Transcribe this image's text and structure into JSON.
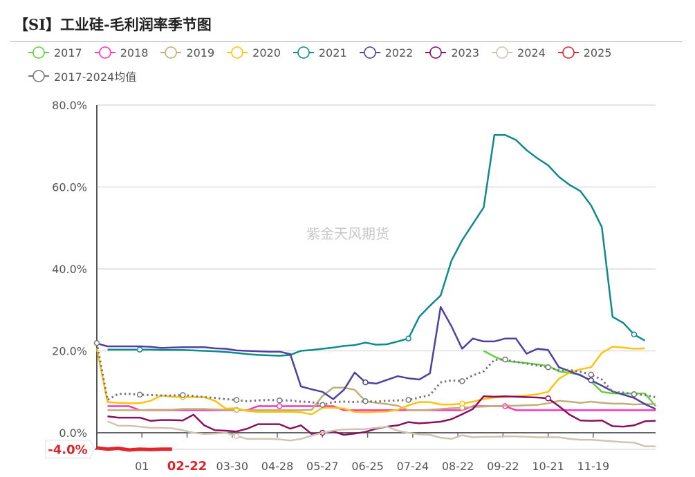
{
  "title": "【SI】工业硅-毛利润率季节图",
  "watermark": "紫金天风期货",
  "chart_data": {
    "type": "line",
    "title": "【SI】工业硅-毛利润率季节图",
    "ylim": [
      -4,
      80
    ],
    "y_ticks": [
      "80.0%",
      "60.0%",
      "40.0%",
      "20.0%",
      "0.0%"
    ],
    "y_tick_values": [
      80,
      60,
      40,
      20,
      0
    ],
    "x_count": 53,
    "x_ticks": [
      {
        "label": "01",
        "at": 4.2
      },
      {
        "label": "02-22",
        "at": 8.4
      },
      {
        "label": "03-30",
        "at": 12.6
      },
      {
        "label": "04-28",
        "at": 16.8
      },
      {
        "label": "05-27",
        "at": 21.0
      },
      {
        "label": "06-25",
        "at": 25.2
      },
      {
        "label": "07-24",
        "at": 29.4
      },
      {
        "label": "08-22",
        "at": 33.6
      },
      {
        "label": "09-22",
        "at": 37.8
      },
      {
        "label": "10-21",
        "at": 42.0
      },
      {
        "label": "11-19",
        "at": 46.2
      }
    ],
    "axis_pointer": {
      "x_label": "02-22",
      "y_label": "-4.0%",
      "color": "#d9252b"
    },
    "grid": true,
    "legend_position": "top-left",
    "series": [
      {
        "name": "2017",
        "color": "#5ed13c",
        "values": [
          null,
          null,
          null,
          null,
          null,
          null,
          null,
          null,
          null,
          null,
          null,
          null,
          null,
          null,
          null,
          null,
          null,
          null,
          null,
          null,
          null,
          null,
          null,
          null,
          null,
          null,
          null,
          null,
          null,
          null,
          null,
          null,
          null,
          null,
          null,
          null,
          20.0,
          18.6,
          17.5,
          17.3,
          17.0,
          16.7,
          16.3,
          15.0,
          14.6,
          14.2,
          12.5,
          10.0,
          9.6,
          9.6,
          9.6,
          9.6,
          6.5
        ]
      },
      {
        "name": "2018",
        "color": "#ff33bb",
        "values": [
          null,
          6.5,
          6.5,
          6.5,
          5.5,
          5.5,
          5.5,
          5.5,
          5.5,
          5.5,
          5.5,
          5.5,
          5.5,
          5.5,
          5.5,
          6.5,
          6.5,
          6.5,
          6.5,
          6.5,
          6.5,
          6.5,
          6.5,
          5.5,
          5.5,
          5.5,
          5.5,
          5.5,
          5.5,
          5.5,
          5.5,
          5.5,
          5.5,
          5.5,
          5.5,
          6.5,
          6.5,
          6.5,
          6.5,
          5.5,
          5.5,
          5.5,
          5.5,
          5.5,
          5.5,
          5.5,
          5.5,
          5.5,
          5.5,
          5.5,
          5.5,
          5.5,
          5.5
        ]
      },
      {
        "name": "2019",
        "color": "#bfae78",
        "values": [
          null,
          5.5,
          5.5,
          5.5,
          5.5,
          5.6,
          5.6,
          5.6,
          5.8,
          5.8,
          5.8,
          5.7,
          5.6,
          5.6,
          5.5,
          5.5,
          5.5,
          5.5,
          5.5,
          5.5,
          5.6,
          9.0,
          11.0,
          11.0,
          10.5,
          7.7,
          7.3,
          7.0,
          6.6,
          5.5,
          5.5,
          5.6,
          5.8,
          6.0,
          6.1,
          6.3,
          6.4,
          6.5,
          6.6,
          6.6,
          6.7,
          6.8,
          7.2,
          7.8,
          7.6,
          7.3,
          7.6,
          7.3,
          7.1,
          7.1,
          6.9,
          7.0,
          7.0
        ]
      },
      {
        "name": "2020",
        "color": "#ffc20e",
        "values": [
          20.6,
          7.5,
          7.3,
          7.2,
          7.2,
          7.8,
          9.1,
          8.8,
          8.7,
          8.7,
          8.7,
          7.8,
          5.9,
          6.0,
          5.3,
          5.1,
          5.1,
          5.1,
          5.1,
          5.0,
          4.5,
          6.1,
          6.1,
          5.9,
          5.1,
          5.0,
          5.1,
          5.2,
          5.6,
          6.7,
          7.5,
          7.5,
          6.9,
          6.9,
          7.1,
          7.6,
          8.2,
          8.6,
          8.7,
          8.9,
          9.1,
          9.4,
          10.0,
          13.2,
          14.7,
          15.5,
          16.0,
          19.5,
          21.0,
          20.8,
          20.5,
          20.6,
          null
        ]
      },
      {
        "name": "2021",
        "color": "#0e8a8f",
        "values": [
          null,
          20.3,
          20.3,
          20.3,
          20.3,
          20.3,
          20.2,
          20.2,
          20.2,
          20.1,
          20.0,
          19.9,
          19.7,
          19.5,
          19.2,
          19.0,
          18.9,
          18.8,
          19.0,
          20.0,
          20.2,
          20.5,
          20.8,
          21.2,
          21.4,
          22.0,
          21.5,
          21.6,
          22.3,
          23.0,
          28.3,
          31.0,
          33.5,
          42.0,
          47.0,
          51.0,
          55.0,
          72.7,
          72.7,
          71.5,
          69.0,
          67.0,
          65.3,
          62.5,
          60.5,
          59.0,
          55.5,
          50.2,
          28.3,
          26.8,
          24.0,
          22.5,
          null
        ]
      },
      {
        "name": "2022",
        "color": "#4f3f9e",
        "values": [
          21.8,
          21.1,
          21.1,
          21.1,
          21.1,
          21.0,
          20.7,
          20.8,
          20.9,
          20.9,
          20.9,
          20.6,
          20.5,
          20.1,
          20.0,
          19.9,
          19.8,
          19.8,
          19.2,
          11.3,
          10.6,
          10.0,
          8.2,
          10.5,
          14.7,
          12.3,
          12.0,
          12.9,
          13.8,
          13.3,
          13.0,
          14.5,
          30.7,
          26.0,
          20.5,
          23.0,
          22.3,
          22.3,
          23.0,
          23.0,
          19.3,
          20.5,
          20.2,
          16.0,
          15.0,
          14.0,
          12.8,
          11.5,
          10.1,
          9.3,
          8.5,
          7.0,
          5.8
        ]
      },
      {
        "name": "2023",
        "color": "#8a0f5c",
        "values": [
          null,
          4.0,
          3.7,
          3.7,
          3.7,
          2.9,
          3.1,
          3.1,
          3.0,
          4.4,
          1.8,
          0.6,
          0.5,
          0.3,
          1.0,
          2.1,
          2.1,
          2.1,
          1.0,
          1.8,
          -0.3,
          0.0,
          0.3,
          -0.5,
          -0.2,
          0.2,
          1.0,
          1.5,
          1.8,
          2.6,
          2.3,
          2.5,
          2.7,
          3.3,
          4.5,
          5.8,
          8.9,
          8.8,
          8.9,
          8.8,
          8.7,
          8.6,
          8.4,
          6.5,
          4.4,
          3.0,
          2.9,
          3.0,
          1.6,
          1.5,
          1.8,
          2.8,
          2.9
        ]
      },
      {
        "name": "2024",
        "color": "#cfc3b2",
        "values": [
          null,
          2.8,
          1.7,
          1.7,
          1.5,
          1.2,
          1.2,
          1.1,
          0.6,
          0.0,
          -0.3,
          -0.2,
          0.0,
          -0.8,
          -1.5,
          -1.5,
          -1.5,
          -1.6,
          -1.9,
          -1.5,
          -0.7,
          0.0,
          0.5,
          0.8,
          0.9,
          0.9,
          1.2,
          1.5,
          0.5,
          0.0,
          -0.4,
          -0.5,
          -1.2,
          -1.5,
          -0.6,
          -1.1,
          -1.0,
          -1.0,
          -0.9,
          -0.9,
          -1.0,
          -1.1,
          -1.1,
          -1.1,
          -1.5,
          -1.7,
          -1.7,
          -1.9,
          -2.1,
          -2.3,
          -2.4,
          -3.3,
          -3.3
        ]
      },
      {
        "name": "2025",
        "color": "#e0262e",
        "values": [
          -3.7,
          -4.0,
          -3.8,
          -4.2,
          -4.0,
          -4.1,
          -4.0,
          -4.0,
          null,
          null,
          null,
          null,
          null,
          null,
          null,
          null,
          null,
          null,
          null,
          null,
          null,
          null,
          null,
          null,
          null,
          null,
          null,
          null,
          null,
          null,
          null,
          null,
          null,
          null,
          null,
          null,
          null,
          null,
          null,
          null,
          null,
          null,
          null,
          null,
          null,
          null,
          null,
          null,
          null,
          null,
          null,
          null,
          null
        ]
      },
      {
        "name": "2017-2024均值",
        "color": "#777777",
        "dotted": true,
        "values": [
          21.9,
          8.0,
          9.5,
          9.5,
          9.3,
          9.2,
          9.1,
          9.1,
          9.2,
          9.0,
          8.7,
          8.5,
          8.2,
          8.0,
          7.7,
          7.9,
          8.0,
          7.9,
          7.9,
          7.6,
          7.5,
          6.8,
          7.5,
          7.6,
          7.5,
          7.7,
          7.6,
          7.8,
          7.9,
          8.0,
          8.6,
          9.2,
          12.3,
          12.8,
          12.6,
          14.0,
          15.0,
          17.8,
          17.9,
          17.3,
          16.9,
          16.4,
          16.0,
          15.3,
          15.3,
          14.9,
          14.2,
          13.0,
          10.0,
          9.8,
          9.4,
          9.2,
          8.7
        ]
      }
    ]
  }
}
